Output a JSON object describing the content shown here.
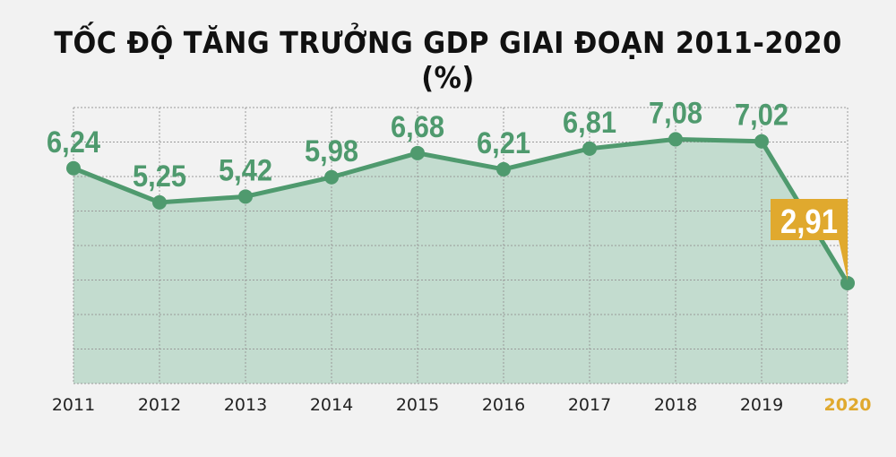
{
  "chart_data": {
    "type": "area",
    "title": "TỐC ĐỘ TĂNG TRƯỞNG GDP GIAI ĐOẠN 2011-2020 (%)",
    "categories": [
      "2011",
      "2012",
      "2013",
      "2014",
      "2015",
      "2016",
      "2017",
      "2018",
      "2019",
      "2020"
    ],
    "values": [
      6.24,
      5.25,
      5.42,
      5.98,
      6.68,
      6.21,
      6.81,
      7.08,
      7.02,
      2.91
    ],
    "data_labels": [
      "6,24",
      "5,25",
      "5,42",
      "5,98",
      "6,68",
      "6,21",
      "6,81",
      "7,08",
      "7,02",
      "2,91"
    ],
    "ylim": [
      0,
      8
    ],
    "grid": true,
    "highlight_index": 9,
    "colors": {
      "line": "#4f9a6e",
      "fill": "#c3dccf",
      "highlight": "#e0a92e",
      "grid": "#9a9a9a",
      "background": "#f2f2f2"
    }
  }
}
